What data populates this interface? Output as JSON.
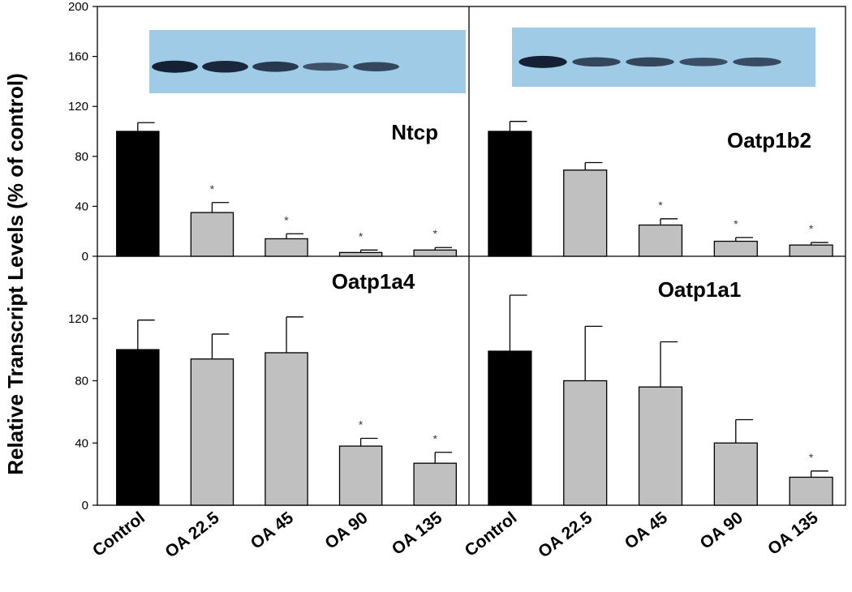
{
  "chart_data": {
    "type": "bar",
    "ylabel": "Relative Transcript Levels (% of control)",
    "categories": [
      "Control",
      "OA 22.5",
      "OA 45",
      "OA 90",
      "OA 135"
    ],
    "colors": {
      "control": "#000000",
      "treated": "#c0c0c0",
      "blot": "#9fcbe6",
      "band": "#152035",
      "asterisk": "#333a55"
    },
    "panels": [
      {
        "title": "Ntcp",
        "ylim": [
          0,
          200
        ],
        "yticks": [
          "0",
          "40",
          "80",
          "120",
          "160",
          "200"
        ],
        "values": [
          100,
          35,
          14,
          3,
          5
        ],
        "errors": [
          7,
          8,
          4,
          2,
          2
        ],
        "significant": [
          false,
          true,
          true,
          true,
          true
        ],
        "western_blot": true,
        "band_intensity": [
          1.0,
          0.95,
          0.75,
          0.45,
          0.6
        ]
      },
      {
        "title": "Oatp1b2",
        "ylim": [
          0,
          200
        ],
        "yticks": [],
        "values": [
          100,
          69,
          25,
          12,
          9
        ],
        "errors": [
          8,
          6,
          5,
          3,
          2
        ],
        "significant": [
          false,
          false,
          true,
          true,
          true
        ],
        "western_blot": true,
        "band_intensity": [
          1.0,
          0.6,
          0.6,
          0.5,
          0.55
        ]
      },
      {
        "title": "Oatp1a4",
        "ylim": [
          0,
          160
        ],
        "yticks": [
          "0",
          "40",
          "80",
          "120"
        ],
        "values": [
          100,
          94,
          98,
          38,
          27
        ],
        "errors": [
          19,
          16,
          23,
          5,
          7
        ],
        "significant": [
          false,
          false,
          false,
          true,
          true
        ]
      },
      {
        "title": "Oatp1a1",
        "ylim": [
          0,
          160
        ],
        "yticks": [],
        "values": [
          99,
          80,
          76,
          40,
          18
        ],
        "errors": [
          36,
          35,
          29,
          15,
          4
        ],
        "significant": [
          false,
          false,
          false,
          false,
          true
        ]
      }
    ],
    "asterisk_label": "*"
  }
}
